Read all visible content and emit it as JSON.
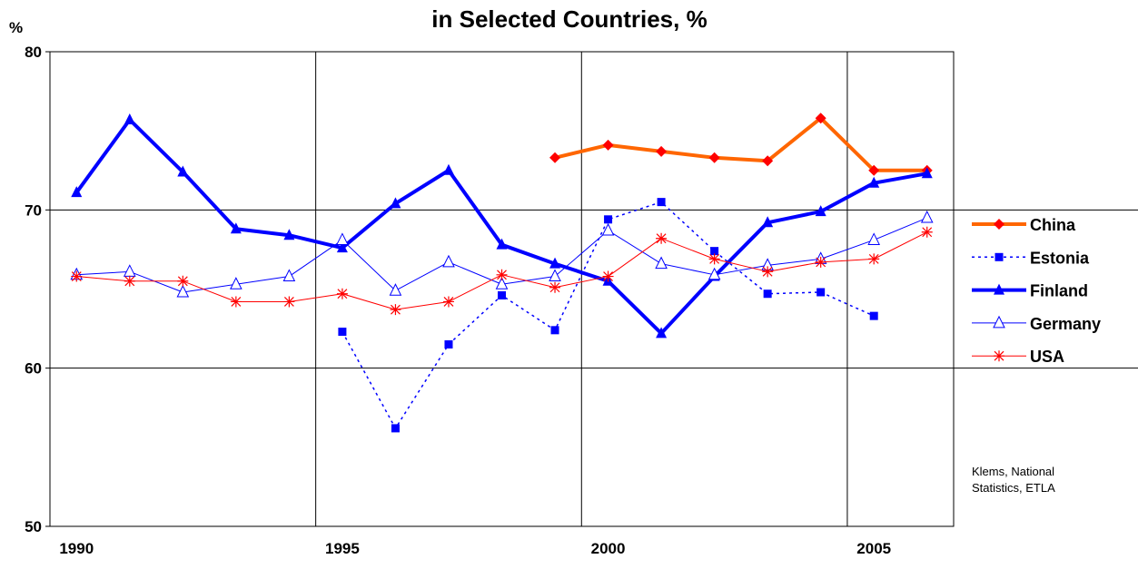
{
  "chart_data": {
    "type": "line",
    "title": "in Selected Countries, %",
    "y_label": "%",
    "annotation": [
      "Klems, National",
      "Statistics, ETLA"
    ],
    "categories": [
      "1990",
      null,
      null,
      null,
      null,
      "1995",
      null,
      null,
      null,
      null,
      "2000",
      null,
      null,
      null,
      null,
      "2005",
      null
    ],
    "ylim": [
      50,
      80
    ],
    "yticks": [
      50,
      60,
      70,
      80
    ],
    "grid": true,
    "legend": "right",
    "series": [
      {
        "name": "China",
        "color": "#FF6600",
        "marker_color": "#FF0000",
        "marker": "diamond",
        "line_style": "solid",
        "width": 4,
        "values": [
          null,
          null,
          null,
          null,
          null,
          null,
          null,
          null,
          null,
          73.3,
          74.1,
          73.7,
          73.3,
          73.1,
          75.8,
          72.5,
          72.5
        ]
      },
      {
        "name": "Estonia",
        "color": "#0000FF",
        "marker_color": "#0000FF",
        "marker": "square",
        "line_style": "dotted",
        "width": 1.5,
        "values": [
          null,
          null,
          null,
          null,
          null,
          62.3,
          56.2,
          61.5,
          64.6,
          62.4,
          69.4,
          70.5,
          67.4,
          64.7,
          64.8,
          63.3,
          null
        ]
      },
      {
        "name": "Finland",
        "color": "#0000FF",
        "marker_color": "#0000FF",
        "marker": "triangle",
        "line_style": "solid",
        "width": 4,
        "values": [
          71.1,
          75.7,
          72.4,
          68.8,
          68.4,
          67.6,
          70.4,
          72.5,
          67.8,
          66.6,
          65.5,
          62.2,
          65.8,
          69.2,
          69.9,
          71.7,
          72.3
        ]
      },
      {
        "name": "Germany",
        "color": "#0000FF",
        "marker_color": "#0000FF",
        "marker": "open-triangle",
        "line_style": "solid",
        "width": 1,
        "values": [
          65.9,
          66.1,
          64.8,
          65.3,
          65.8,
          68.1,
          64.9,
          66.7,
          65.3,
          65.8,
          68.7,
          66.6,
          65.9,
          66.5,
          66.9,
          68.1,
          69.5
        ]
      },
      {
        "name": "USA",
        "color": "#FF0000",
        "marker_color": "#FF0000",
        "marker": "asterisk",
        "line_style": "solid",
        "width": 1,
        "values": [
          65.8,
          65.5,
          65.5,
          64.2,
          64.2,
          64.7,
          63.7,
          64.2,
          65.9,
          65.1,
          65.8,
          68.2,
          66.9,
          66.1,
          66.7,
          66.9,
          68.6
        ]
      }
    ]
  }
}
